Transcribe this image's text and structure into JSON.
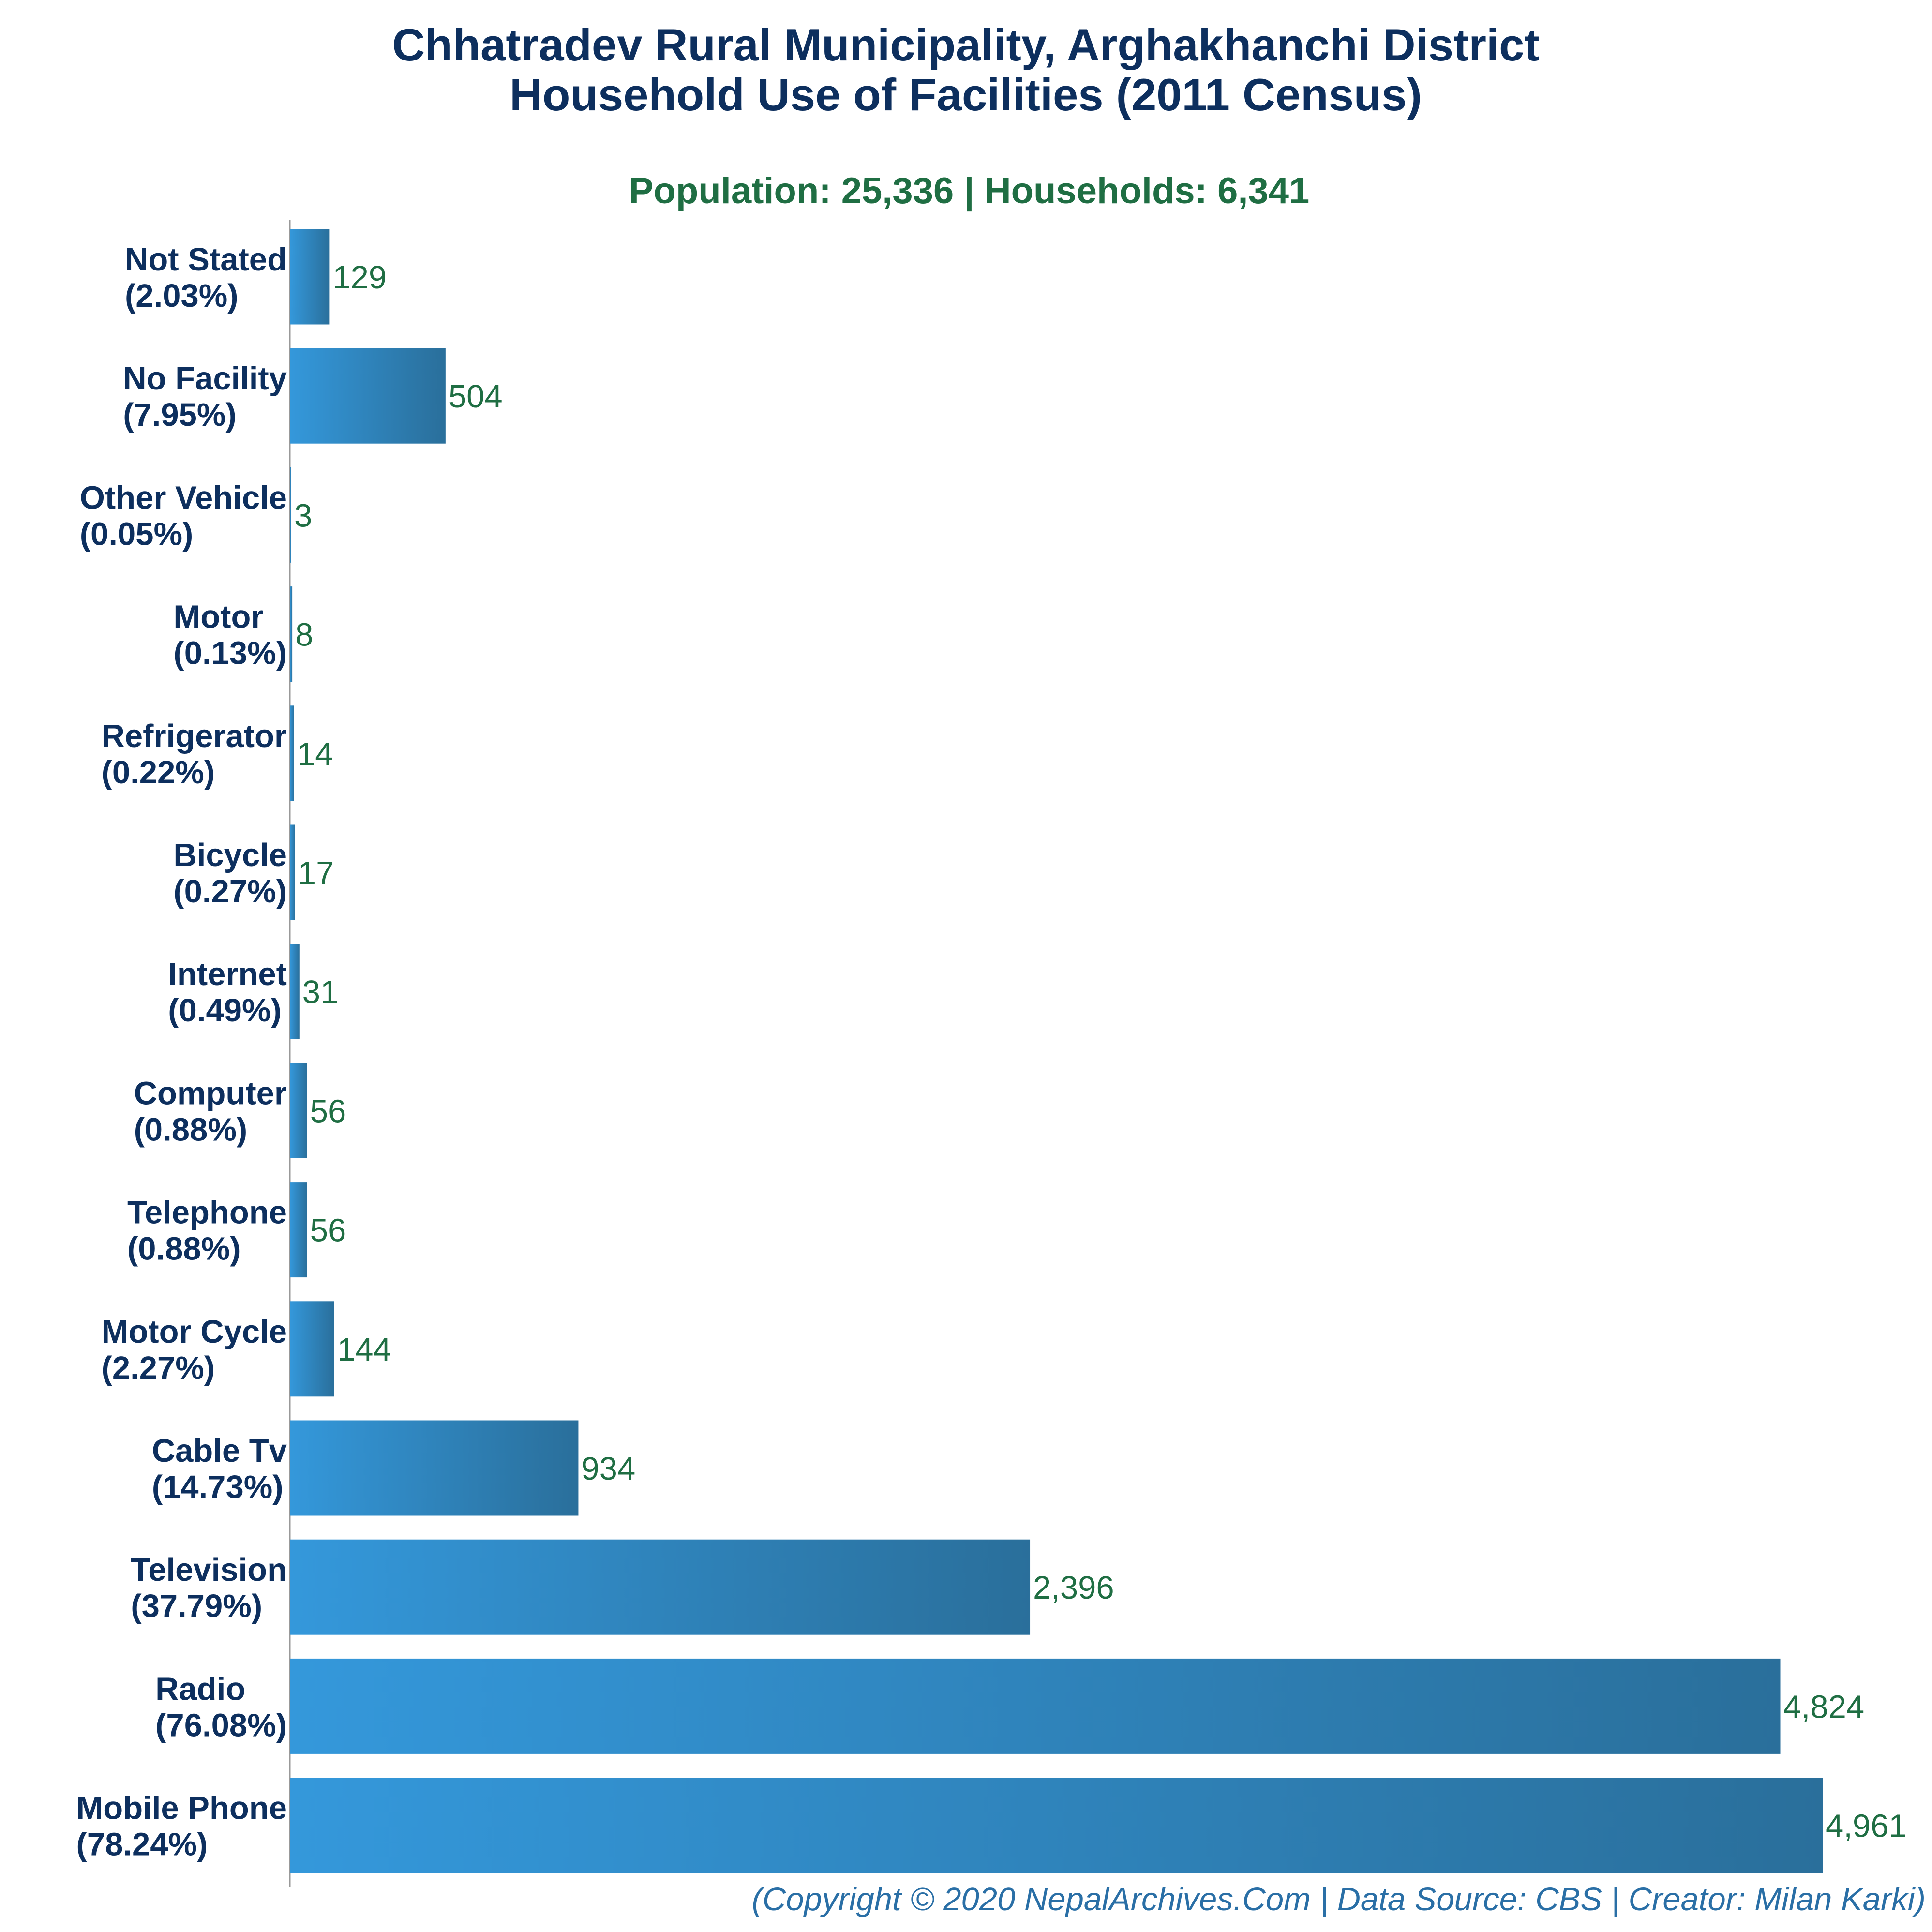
{
  "chart_data": {
    "type": "bar",
    "orientation": "horizontal",
    "title_line1": "Chhatradev Rural Municipality, Arghakhanchi District",
    "title_line2": "Household Use of Facilities (2011 Census)",
    "subtitle": "Population: 25,336 | Households: 6,341",
    "categories": [
      "Not Stated",
      "No Facility",
      "Other Vehicle",
      "Motor",
      "Refrigerator",
      "Bicycle",
      "Internet",
      "Computer",
      "Telephone",
      "Motor Cycle",
      "Cable Tv",
      "Television",
      "Radio",
      "Mobile Phone"
    ],
    "percent_labels": [
      "(2.03%)",
      "(7.95%)",
      "(0.05%)",
      "(0.13%)",
      "(0.22%)",
      "(0.27%)",
      "(0.49%)",
      "(0.88%)",
      "(0.88%)",
      "(2.27%)",
      "(14.73%)",
      "(37.79%)",
      "(76.08%)",
      "(78.24%)"
    ],
    "values": [
      129,
      504,
      3,
      8,
      14,
      17,
      31,
      56,
      56,
      144,
      934,
      2396,
      4824,
      4961
    ],
    "value_labels": [
      "129",
      "504",
      "3",
      "8",
      "14",
      "17",
      "31",
      "56",
      "56",
      "144",
      "934",
      "2,396",
      "4,824",
      "4,961"
    ],
    "xlim": [
      0,
      4961
    ],
    "grid": false,
    "colors": {
      "bar_gradient_start": "#3498db",
      "bar_gradient_end": "#2a6f9b",
      "title": "#0d2f5e",
      "subtitle": "#1f6e43",
      "category_label": "#0d2f5e",
      "value_label": "#1f6e43",
      "footer": "#2a6fa6",
      "axis": "#999999"
    }
  },
  "footer": "(Copyright © 2020 NepalArchives.Com | Data Source: CBS | Creator: Milan Karki)"
}
